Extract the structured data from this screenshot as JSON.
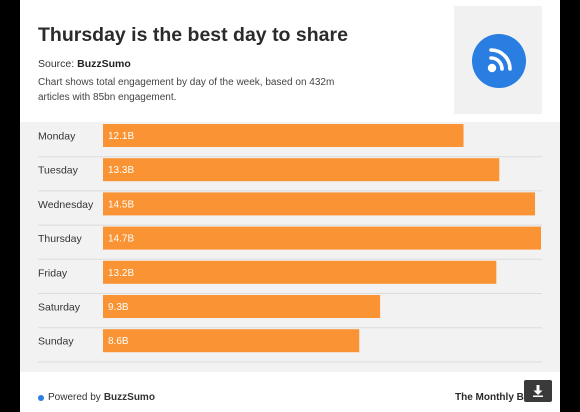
{
  "header": {
    "title": "Thursday is the best day to share",
    "source_label": "Source:",
    "source_name": "BuzzSumo",
    "description": "Chart shows total engagement by day of the week, based on 432m articles with 85bn engagement."
  },
  "logo": {
    "icon": "rss-feed-icon",
    "color": "#2a7de1"
  },
  "footer": {
    "powered_label": "Powered by",
    "powered_brand": "BuzzSumo",
    "publisher": "The Monthly Buzz"
  },
  "download_button": {
    "icon": "download-icon"
  },
  "colors": {
    "bar": "#fa9333",
    "grid": "#dcdcdc",
    "label": "#333333"
  },
  "chart_data": {
    "type": "bar",
    "orientation": "horizontal",
    "categories": [
      "Monday",
      "Tuesday",
      "Wednesday",
      "Thursday",
      "Friday",
      "Saturday",
      "Sunday"
    ],
    "values": [
      12.1,
      13.3,
      14.5,
      14.7,
      13.2,
      9.3,
      8.6
    ],
    "data_labels": [
      "12.1B",
      "13.3B",
      "14.5B",
      "14.7B",
      "13.2B",
      "9.3B",
      "8.6B"
    ],
    "unit": "B",
    "xlim": [
      0,
      14.7
    ]
  }
}
